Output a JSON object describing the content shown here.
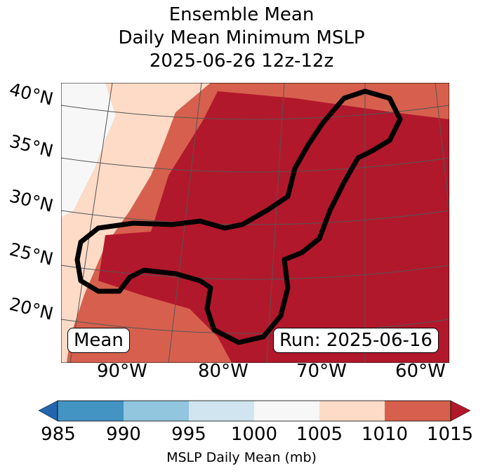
{
  "title": {
    "line1": "Ensemble Mean",
    "line2": "Daily Mean Minimum MSLP",
    "line3": "2025-06-26 12z-12z"
  },
  "map": {
    "lat_labels": [
      "40°N",
      "35°N",
      "30°N",
      "25°N",
      "20°N"
    ],
    "lon_labels": [
      "90°W",
      "80°W",
      "70°W",
      "60°W"
    ],
    "mean_box": "Mean",
    "run_box": "Run: 2025-06-16",
    "contour_icon": "black-contour-outline"
  },
  "colorbar": {
    "label": "MSLP Daily Mean (mb)",
    "ticks": [
      "985",
      "990",
      "995",
      "1000",
      "1005",
      "1010",
      "1015"
    ],
    "colors": [
      "#4393c3",
      "#92c5de",
      "#d1e5f0",
      "#f7f7f7",
      "#fddbc7",
      "#d6604d"
    ],
    "under_color": "#2166ac",
    "over_color": "#b2182b"
  }
}
